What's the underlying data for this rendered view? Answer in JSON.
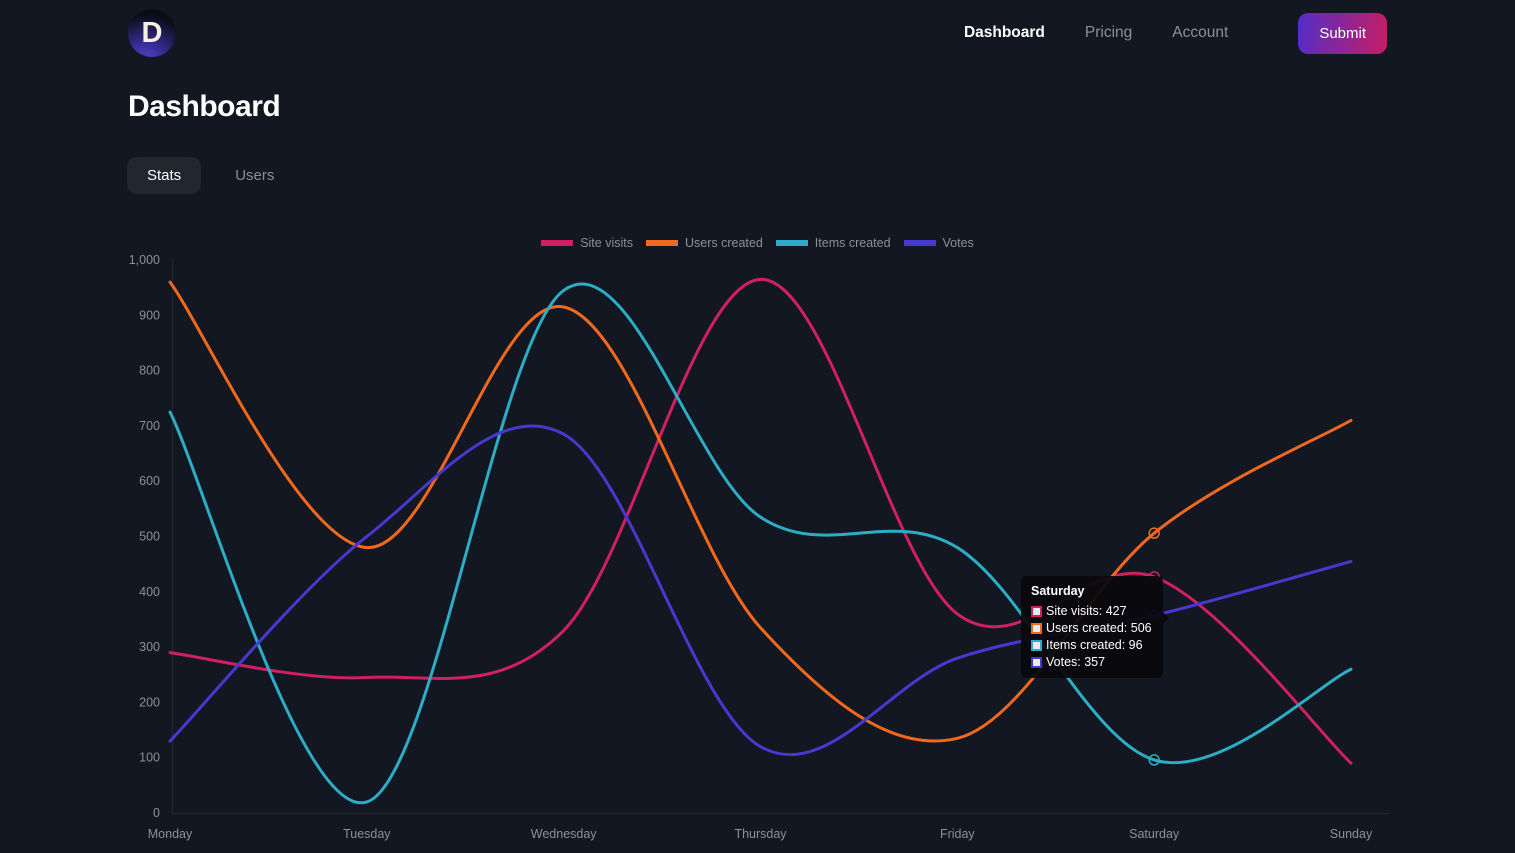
{
  "header": {
    "logo_letter": "D",
    "nav": [
      {
        "label": "Dashboard",
        "active": true
      },
      {
        "label": "Pricing",
        "active": false
      },
      {
        "label": "Account",
        "active": false
      }
    ],
    "submit_label": "Submit"
  },
  "page": {
    "title": "Dashboard"
  },
  "tabs": [
    {
      "label": "Stats",
      "active": true
    },
    {
      "label": "Users",
      "active": false
    }
  ],
  "colors": {
    "background": "#121722",
    "muted_text": "#8b9099",
    "axis_line": "#232834",
    "site_visits": "#d01f63",
    "users_created": "#f2691d",
    "items_created": "#2cadc4",
    "votes": "#4639cf",
    "submit_gradient_start": "#512dc8",
    "submit_gradient_end": "#c71e62"
  },
  "chart_data": {
    "type": "line",
    "x": [
      "Monday",
      "Tuesday",
      "Wednesday",
      "Thursday",
      "Friday",
      "Saturday",
      "Sunday"
    ],
    "series": [
      {
        "name": "Site visits",
        "color": "#d01f63",
        "values": [
          290,
          245,
          330,
          965,
          360,
          427,
          90
        ]
      },
      {
        "name": "Users created",
        "color": "#f2691d",
        "values": [
          960,
          480,
          915,
          335,
          135,
          506,
          710
        ]
      },
      {
        "name": "Items created",
        "color": "#2cadc4",
        "values": [
          725,
          20,
          945,
          535,
          480,
          96,
          260
        ]
      },
      {
        "name": "Votes",
        "color": "#4639cf",
        "values": [
          130,
          500,
          685,
          120,
          280,
          357,
          455
        ]
      }
    ],
    "ylim": [
      0,
      1000
    ],
    "ytick_step": 100,
    "grid": false,
    "legend_position": "top",
    "highlight_x": "Saturday"
  },
  "tooltip": {
    "title": "Saturday",
    "rows": [
      {
        "label": "Site visits",
        "value": "427",
        "color": "#d01f63"
      },
      {
        "label": "Users created",
        "value": "506",
        "color": "#f2691d"
      },
      {
        "label": "Items created",
        "value": "96",
        "color": "#2cadc4"
      },
      {
        "label": "Votes",
        "value": "357",
        "color": "#4639cf"
      }
    ]
  }
}
